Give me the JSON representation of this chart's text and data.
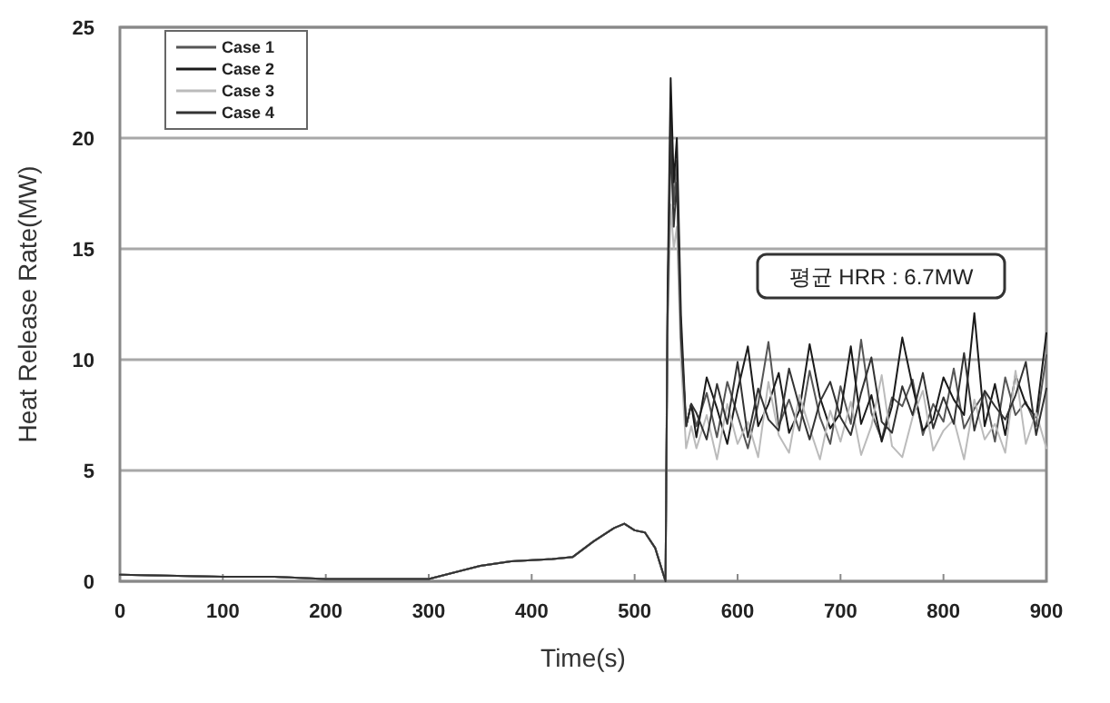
{
  "chart_data": {
    "type": "line",
    "xlabel": "Time(s)",
    "ylabel": "Heat Release Rate(MW)",
    "annotations": [
      "평균 HRR : 6.7MW"
    ],
    "x": [
      0,
      100,
      150,
      200,
      300,
      350,
      380,
      420,
      440,
      460,
      480,
      490,
      500,
      510,
      520,
      528,
      530,
      532,
      535,
      538,
      541,
      545,
      550,
      555,
      560,
      570,
      580,
      590,
      600,
      610,
      620,
      630,
      640,
      650,
      660,
      670,
      680,
      690,
      700,
      710,
      720,
      730,
      740,
      750,
      760,
      770,
      780,
      790,
      800,
      810,
      820,
      830,
      840,
      850,
      860,
      870,
      880,
      890,
      900
    ],
    "xlim": [
      0,
      900
    ],
    "xticks": [
      0,
      100,
      200,
      300,
      400,
      500,
      600,
      700,
      800,
      900
    ],
    "ylim": [
      0,
      25
    ],
    "yticks": [
      0,
      5,
      10,
      15,
      20,
      25
    ],
    "grid": "y",
    "legend": "top left",
    "series": [
      {
        "name": "Case 1",
        "color": "#555555",
        "values": [
          0.3,
          0.2,
          0.2,
          0.1,
          0.1,
          0.7,
          0.9,
          1.0,
          1.1,
          1.8,
          2.4,
          2.6,
          2.3,
          2.2,
          1.5,
          0.3,
          0,
          12,
          21,
          17,
          19,
          11,
          7,
          8,
          7,
          8.5,
          6.5,
          9,
          7.5,
          6,
          8,
          10.8,
          7,
          8.2,
          6.8,
          9.5,
          7.4,
          6.2,
          8.8,
          7.1,
          10.9,
          7.6,
          6.4,
          8.3,
          7.9,
          9.1,
          6.6,
          8,
          7.2,
          9.6,
          6.9,
          7.8,
          8.5,
          6.3,
          9.2,
          7.5,
          8.1,
          7,
          10.2
        ]
      },
      {
        "name": "Case 2",
        "color": "#1a1a1a",
        "values": [
          0.3,
          0.2,
          0.2,
          0.1,
          0.1,
          0.7,
          0.9,
          1.0,
          1.1,
          1.8,
          2.4,
          2.6,
          2.3,
          2.2,
          1.5,
          0.3,
          0,
          13,
          22.7,
          18,
          20,
          12,
          7,
          8,
          6.5,
          9.2,
          7.8,
          6.2,
          8.6,
          10.6,
          7,
          8,
          9.4,
          6.7,
          7.7,
          10.7,
          8.3,
          6.9,
          7.6,
          10.6,
          7.1,
          8.4,
          6.3,
          7.9,
          11,
          8.8,
          6.8,
          7.3,
          9.2,
          8.2,
          7.5,
          12.1,
          7,
          8.9,
          6.6,
          9.3,
          8,
          7.4,
          11.2
        ]
      },
      {
        "name": "Case 3",
        "color": "#bbbbbb",
        "values": [
          0.3,
          0.2,
          0.2,
          0.1,
          0.1,
          0.7,
          0.9,
          1.0,
          1.1,
          1.8,
          2.4,
          2.6,
          2.3,
          2.2,
          1.5,
          0.3,
          0,
          11,
          17,
          15,
          16,
          10,
          6,
          7,
          6,
          7.5,
          5.5,
          8,
          6.2,
          7.2,
          5.6,
          9,
          6.6,
          5.8,
          8.4,
          6.9,
          5.5,
          7.7,
          6.3,
          8.1,
          5.7,
          7,
          9.3,
          6.1,
          5.6,
          7.4,
          8.6,
          5.9,
          6.8,
          7.3,
          5.5,
          8.2,
          6.4,
          7.1,
          5.8,
          9.5,
          6.2,
          7.6,
          6
        ]
      },
      {
        "name": "Case 4",
        "color": "#333333",
        "values": [
          0.3,
          0.2,
          0.2,
          0.1,
          0.1,
          0.7,
          0.9,
          1.0,
          1.1,
          1.8,
          2.4,
          2.6,
          2.3,
          2.2,
          1.5,
          0.3,
          0,
          12,
          20,
          16,
          18,
          11,
          7,
          8,
          7.6,
          6.4,
          8.9,
          7.1,
          9.9,
          6.5,
          8.7,
          7.3,
          6.8,
          9.6,
          7.9,
          6.4,
          8.1,
          9,
          7.4,
          6.6,
          8.5,
          10.1,
          7.2,
          6.7,
          8.8,
          7.5,
          9.4,
          6.9,
          8.3,
          7.1,
          10.3,
          6.8,
          8.6,
          7.9,
          7.3,
          8.4,
          9.9,
          6.6,
          8.7
        ]
      }
    ]
  }
}
